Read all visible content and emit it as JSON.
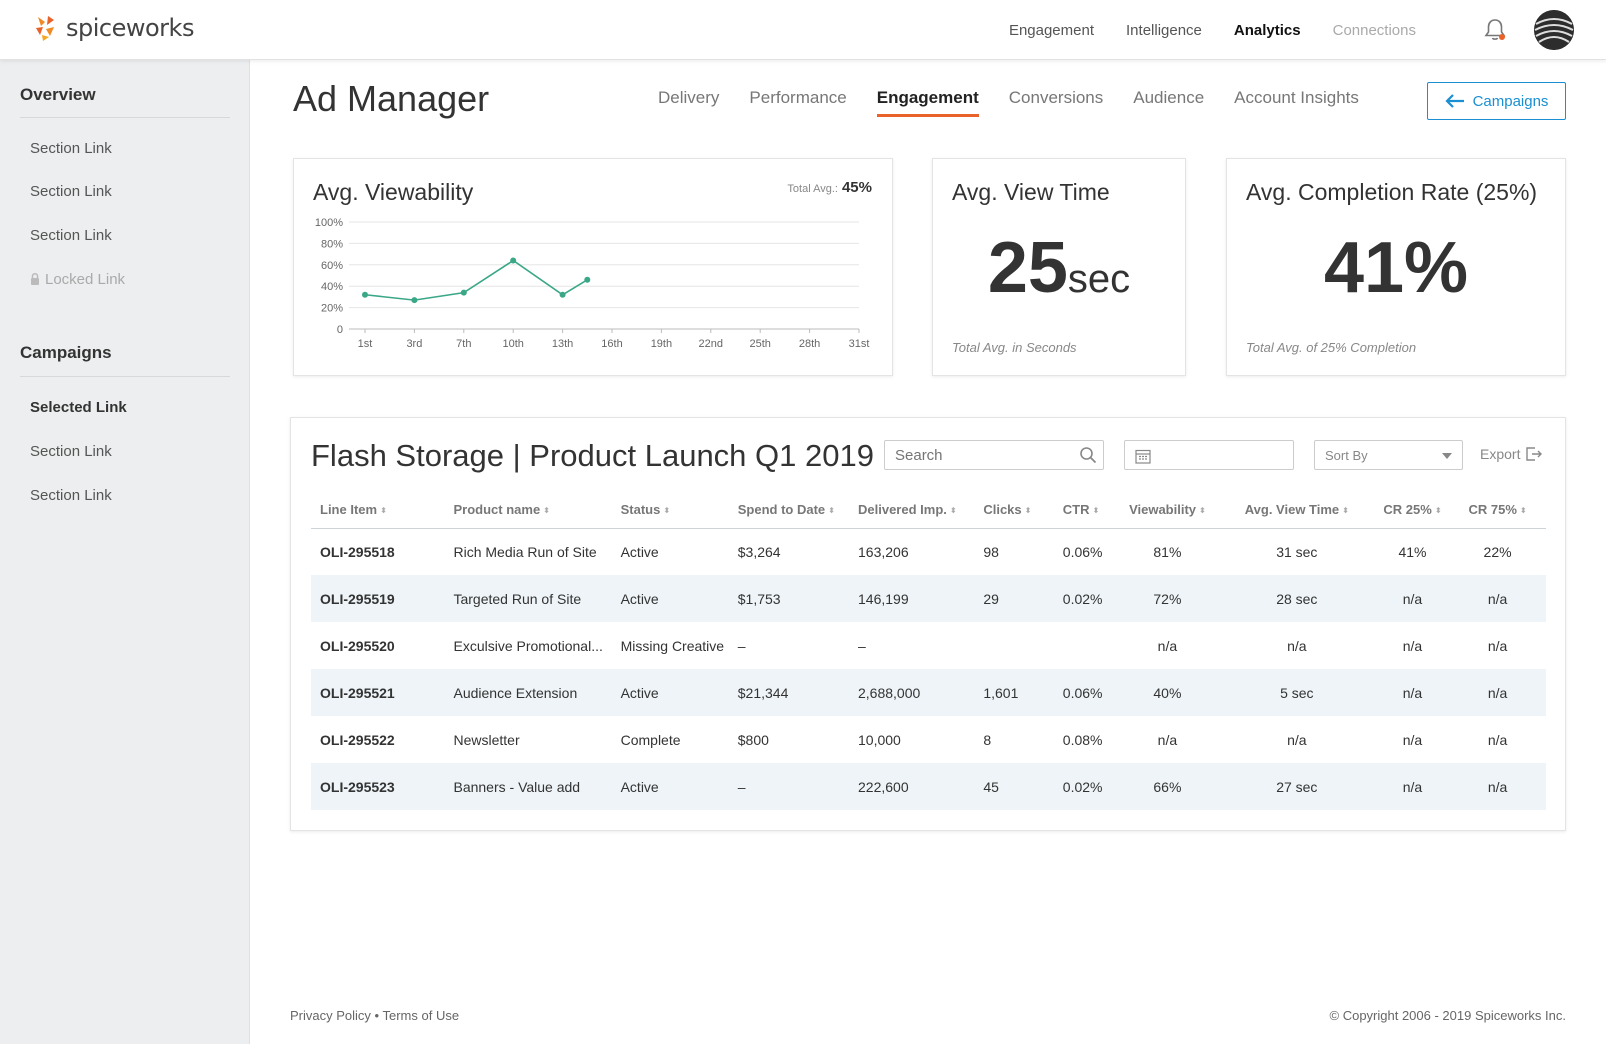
{
  "brand": {
    "name": "spiceworks",
    "accent": "#e8622a",
    "link_color": "#1a8fd1"
  },
  "topnav": {
    "items": [
      {
        "label": "Engagement"
      },
      {
        "label": "Intelligence"
      },
      {
        "label": "Analytics"
      },
      {
        "label": "Connections"
      }
    ]
  },
  "sidebar": {
    "overview_heading": "Overview",
    "overview_links": [
      "Section Link",
      "Section Link",
      "Section Link"
    ],
    "locked_link": "Locked Link",
    "campaigns_heading": "Campaigns",
    "selected_link": "Selected Link",
    "campaign_links": [
      "Section Link",
      "Section Link"
    ]
  },
  "page": {
    "title": "Ad Manager",
    "tabs": [
      "Delivery",
      "Performance",
      "Engagement",
      "Conversions",
      "Audience",
      "Account Insights"
    ],
    "active_tab": "Engagement",
    "campaigns_button": "Campaigns"
  },
  "viewability": {
    "title": "Avg. Viewability",
    "total_label": "Total Avg.:",
    "total_value": "45%"
  },
  "view_time": {
    "title": "Avg. View Time",
    "value": "25",
    "unit": "sec",
    "footnote": "Total Avg. in Seconds"
  },
  "completion": {
    "title": "Avg. Completion Rate (25%)",
    "value": "41%",
    "footnote": "Total Avg. of 25% Completion"
  },
  "chart_data": {
    "type": "line",
    "categories": [
      "1st",
      "3rd",
      "7th",
      "10th",
      "13th",
      "16th",
      "19th",
      "22nd",
      "25th",
      "28th",
      "31st"
    ],
    "x": [
      1,
      4,
      7,
      10,
      13,
      14.5
    ],
    "values": [
      32,
      27,
      34,
      64,
      32,
      46
    ],
    "ylim": [
      0,
      100
    ],
    "yticks": [
      "0",
      "20%",
      "40%",
      "60%",
      "80%",
      "100%"
    ],
    "grid": true,
    "color": "#3aa787"
  },
  "table": {
    "title": "Flash Storage | Product Launch Q1 2019",
    "search_placeholder": "Search",
    "sort_label": "Sort By",
    "export_label": "Export",
    "columns": [
      "Line Item",
      "Product name",
      "Status",
      "Spend to Date",
      "Delivered Imp.",
      "Clicks",
      "CTR",
      "Viewability",
      "Avg. View Time",
      "CR 25%",
      "CR 75%"
    ],
    "rows": [
      [
        "OLI-295518",
        "Rich Media Run of Site",
        "Active",
        "$3,264",
        "163,206",
        "98",
        "0.06%",
        "81%",
        "31 sec",
        "41%",
        "22%"
      ],
      [
        "OLI-295519",
        "Targeted Run of Site",
        "Active",
        "$1,753",
        "146,199",
        "29",
        "0.02%",
        "72%",
        "28 sec",
        "n/a",
        "n/a"
      ],
      [
        "OLI-295520",
        "Exculsive Promotional...",
        "Missing Creative",
        "–",
        "–",
        "",
        "",
        "n/a",
        "n/a",
        "n/a",
        "n/a"
      ],
      [
        "OLI-295521",
        "Audience Extension",
        "Active",
        "$21,344",
        "2,688,000",
        "1,601",
        "0.06%",
        "40%",
        "5 sec",
        "n/a",
        "n/a"
      ],
      [
        "OLI-295522",
        "Newsletter",
        "Complete",
        "$800",
        "10,000",
        "8",
        "0.08%",
        "n/a",
        "n/a",
        "n/a",
        "n/a"
      ],
      [
        "OLI-295523",
        "Banners - Value add",
        "Active",
        "–",
        "222,600",
        "45",
        "0.02%",
        "66%",
        "27 sec",
        "n/a",
        "n/a"
      ]
    ]
  },
  "footer": {
    "privacy": "Privacy Policy",
    "separator": "•",
    "terms": "Terms of Use",
    "copyright": "© Copyright 2006 - 2019 Spiceworks Inc."
  }
}
